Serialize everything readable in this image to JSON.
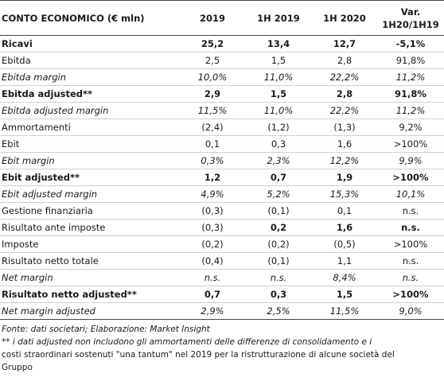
{
  "table": {
    "headers": [
      "CONTO ECONOMICO (€ mln)",
      "2019",
      "1H 2019",
      "1H 2020",
      "Var.",
      "1H20/1H19"
    ],
    "rows": [
      {
        "label": "Ricavi",
        "values": [
          "25,2",
          "13,4",
          "12,7",
          "-5,1%"
        ],
        "style": "bold"
      },
      {
        "label": "Ebitda",
        "values": [
          "2,5",
          "1,5",
          "2,8",
          "91,8%"
        ],
        "style": "normal"
      },
      {
        "label": "Ebitda margin",
        "values": [
          "10,0%",
          "11,0%",
          "22,2%",
          "11,2%"
        ],
        "style": "italic"
      },
      {
        "label": "Ebitda adjusted**",
        "values": [
          "2,9",
          "1,5",
          "2,8",
          "91,8%"
        ],
        "style": "bold"
      },
      {
        "label": "Ebitda adjusted margin",
        "values": [
          "11,5%",
          "11,0%",
          "22,2%",
          "11,2%"
        ],
        "style": "italic"
      },
      {
        "label": "Ammortamenti",
        "values": [
          "(2,4)",
          "(1,2)",
          "(1,3)",
          "9,2%"
        ],
        "style": "normal"
      },
      {
        "label": "Ebit",
        "values": [
          "0,1",
          "0,3",
          "1,6",
          ">100%"
        ],
        "style": "normal"
      },
      {
        "label": "Ebit margin",
        "values": [
          "0,3%",
          "2,3%",
          "12,2%",
          "9,9%"
        ],
        "style": "italic"
      },
      {
        "label": "Ebit adjusted**",
        "values": [
          "1,2",
          "0,7",
          "1,9",
          ">100%"
        ],
        "style": "bold"
      },
      {
        "label": "Ebit adjusted margin",
        "values": [
          "4,9%",
          "5,2%",
          "15,3%",
          "10,1%"
        ],
        "style": "italic"
      },
      {
        "label": "Gestione finanziaria",
        "values": [
          "(0,3)",
          "(0,1)",
          "0,1",
          "n.s."
        ],
        "style": "normal"
      },
      {
        "label": "Risultato ante imposte",
        "values": [
          "(0,3)",
          "0,2",
          "1,6",
          "n.s."
        ],
        "style": "mixed"
      },
      {
        "label": "Imposte",
        "values": [
          "(0,2)",
          "(0,2)",
          "(0,5)",
          ">100%"
        ],
        "style": "normal"
      },
      {
        "label": "Risultato netto totale",
        "values": [
          "(0,4)",
          "(0,1)",
          "1,1",
          "n.s."
        ],
        "style": "normal"
      },
      {
        "label": "Net margin",
        "values": [
          "n.s.",
          "n.s.",
          "8,4%",
          "n.s."
        ],
        "style": "italic"
      },
      {
        "label": "Risultato netto adjusted**",
        "values": [
          "0,7",
          "0,3",
          "1,5",
          ">100%"
        ],
        "style": "bold"
      },
      {
        "label": "Net margin adjusted",
        "values": [
          "2,9%",
          "2,5%",
          "11,5%",
          "9,0%"
        ],
        "style": "italic"
      }
    ]
  },
  "notes": {
    "source": "Fonte: dati societari; Elaborazione: Market Insight",
    "footnote_a": "** i dati adjusted non includono gli ammortamenti delle differenze di consolidamento e i",
    "footnote_b": "costi straordinari sostenuti \"una tantum\" nel 2019 per la ristrutturazione di alcune società del",
    "footnote_c": "Gruppo"
  }
}
